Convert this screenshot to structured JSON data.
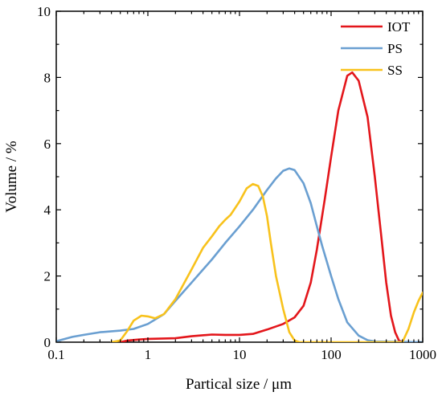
{
  "chart_data": {
    "type": "line",
    "xscale": "log",
    "xlim": [
      0.1,
      1000
    ],
    "ylim": [
      0,
      10
    ],
    "xlabel": "Partical size / μm",
    "ylabel": "Volume / %",
    "xticks": [
      0.1,
      1,
      10,
      100,
      1000
    ],
    "xtick_labels": [
      "0.1",
      "1",
      "10",
      "100",
      "1000"
    ],
    "yticks": [
      0,
      2,
      4,
      6,
      8,
      10
    ],
    "ytick_labels": [
      "0",
      "2",
      "4",
      "6",
      "8",
      "10"
    ],
    "grid": false,
    "legend_position": "top-right",
    "series": [
      {
        "name": "IOT",
        "color": "#e3161b",
        "points": [
          [
            0.5,
            0.0
          ],
          [
            0.6,
            0.05
          ],
          [
            0.8,
            0.08
          ],
          [
            1,
            0.1
          ],
          [
            2,
            0.12
          ],
          [
            3,
            0.18
          ],
          [
            5,
            0.23
          ],
          [
            7,
            0.22
          ],
          [
            10,
            0.22
          ],
          [
            14,
            0.25
          ],
          [
            20,
            0.38
          ],
          [
            30,
            0.55
          ],
          [
            40,
            0.75
          ],
          [
            50,
            1.1
          ],
          [
            60,
            1.8
          ],
          [
            70,
            2.8
          ],
          [
            85,
            4.3
          ],
          [
            100,
            5.6
          ],
          [
            120,
            7.0
          ],
          [
            150,
            8.05
          ],
          [
            170,
            8.15
          ],
          [
            200,
            7.9
          ],
          [
            250,
            6.8
          ],
          [
            300,
            5.0
          ],
          [
            350,
            3.3
          ],
          [
            400,
            1.8
          ],
          [
            450,
            0.8
          ],
          [
            500,
            0.3
          ],
          [
            550,
            0.05
          ],
          [
            600,
            0.0
          ]
        ]
      },
      {
        "name": "PS",
        "color": "#6a9fd1",
        "points": [
          [
            0.1,
            0.03
          ],
          [
            0.15,
            0.16
          ],
          [
            0.2,
            0.22
          ],
          [
            0.3,
            0.3
          ],
          [
            0.5,
            0.35
          ],
          [
            0.7,
            0.4
          ],
          [
            1,
            0.55
          ],
          [
            1.5,
            0.85
          ],
          [
            2,
            1.25
          ],
          [
            3,
            1.8
          ],
          [
            5,
            2.5
          ],
          [
            7,
            3.0
          ],
          [
            10,
            3.5
          ],
          [
            14,
            4.0
          ],
          [
            20,
            4.6
          ],
          [
            25,
            4.95
          ],
          [
            30,
            5.18
          ],
          [
            35,
            5.25
          ],
          [
            40,
            5.2
          ],
          [
            50,
            4.8
          ],
          [
            60,
            4.2
          ],
          [
            70,
            3.5
          ],
          [
            80,
            2.9
          ],
          [
            100,
            2.0
          ],
          [
            120,
            1.3
          ],
          [
            150,
            0.6
          ],
          [
            200,
            0.2
          ],
          [
            250,
            0.06
          ],
          [
            300,
            0.02
          ],
          [
            1000,
            0.0
          ]
        ]
      },
      {
        "name": "SS",
        "color": "#f8c21c",
        "points": [
          [
            0.4,
            0.0
          ],
          [
            0.5,
            0.05
          ],
          [
            0.6,
            0.35
          ],
          [
            0.7,
            0.65
          ],
          [
            0.85,
            0.8
          ],
          [
            1,
            0.78
          ],
          [
            1.2,
            0.72
          ],
          [
            1.5,
            0.85
          ],
          [
            2,
            1.3
          ],
          [
            3,
            2.2
          ],
          [
            4,
            2.85
          ],
          [
            5,
            3.2
          ],
          [
            6,
            3.5
          ],
          [
            7,
            3.7
          ],
          [
            8,
            3.85
          ],
          [
            10,
            4.25
          ],
          [
            12,
            4.65
          ],
          [
            14,
            4.78
          ],
          [
            16,
            4.72
          ],
          [
            18,
            4.4
          ],
          [
            20,
            3.8
          ],
          [
            22,
            3.0
          ],
          [
            25,
            2.0
          ],
          [
            30,
            1.0
          ],
          [
            35,
            0.3
          ],
          [
            40,
            0.05
          ],
          [
            45,
            0.0
          ],
          [
            600,
            0.0
          ],
          [
            700,
            0.4
          ],
          [
            800,
            0.9
          ],
          [
            900,
            1.25
          ],
          [
            1000,
            1.5
          ]
        ]
      }
    ]
  }
}
